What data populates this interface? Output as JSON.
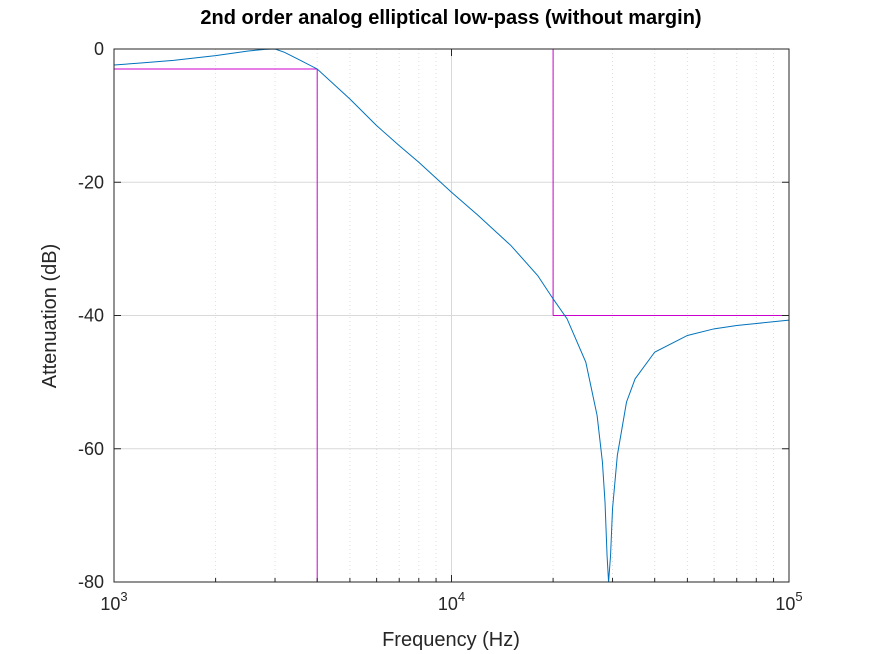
{
  "chart_data": {
    "type": "line",
    "title": "2nd order analog elliptical low-pass (without margin)",
    "xlabel": "Frequency (Hz)",
    "ylabel": "Attenuation (dB)",
    "xscale": "log",
    "xlim": [
      1000,
      100000
    ],
    "ylim": [
      -80,
      0
    ],
    "grid": true,
    "x_ticks": [
      {
        "base": "10",
        "exp": "3",
        "value": 1000
      },
      {
        "base": "10",
        "exp": "4",
        "value": 10000
      },
      {
        "base": "10",
        "exp": "5",
        "value": 100000
      }
    ],
    "y_ticks": [
      {
        "label": "0",
        "value": 0
      },
      {
        "label": "-20",
        "value": -20
      },
      {
        "label": "-40",
        "value": -40
      },
      {
        "label": "-60",
        "value": -60
      },
      {
        "label": "-80",
        "value": -80
      }
    ],
    "response": {
      "color": "#0072bd",
      "x": [
        1000,
        1200,
        1500,
        2000,
        2500,
        2800,
        3000,
        3200,
        3500,
        4000,
        5000,
        6000,
        7000,
        8000,
        10000,
        12000,
        15000,
        18000,
        20000,
        22000,
        25000,
        27000,
        28000,
        28500,
        28900,
        29200,
        29600,
        30000,
        31000,
        33000,
        35000,
        40000,
        50000,
        60000,
        70000,
        80000,
        100000
      ],
      "y": [
        -2.4,
        -2.1,
        -1.7,
        -1.0,
        -0.3,
        -0.05,
        0,
        -0.5,
        -1.5,
        -3.0,
        -7.5,
        -11.5,
        -14.5,
        -17.0,
        -21.5,
        -25.0,
        -29.5,
        -34.0,
        -37.5,
        -40.5,
        -47.0,
        -55.0,
        -62.0,
        -68.0,
        -76.0,
        -80.0,
        -76.0,
        -69.0,
        -61.0,
        -53.0,
        -49.5,
        -45.5,
        -43.0,
        -42.0,
        -41.5,
        -41.2,
        -40.7
      ]
    },
    "spec_masks": {
      "color": "#cc00cc",
      "passband": {
        "ripple_db": -3,
        "edge_hz": 4000
      },
      "stopband": {
        "attenuation_db": -40,
        "edge_hz": 20000
      }
    }
  }
}
